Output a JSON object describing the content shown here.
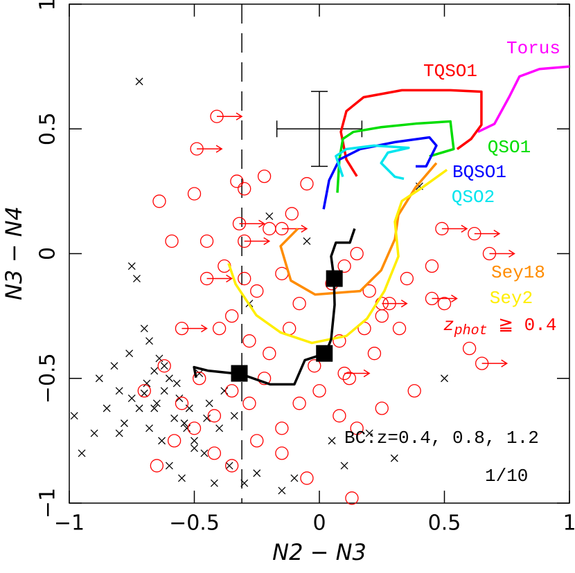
{
  "chart_data": {
    "type": "scatter",
    "xlabel": "N2 − N3",
    "ylabel": "N3 − N4",
    "xlim": [
      -1,
      1
    ],
    "ylim": [
      -1,
      1
    ],
    "xticks": [
      {
        "value": -1,
        "label": "−1"
      },
      {
        "value": -0.5,
        "label": "−0.5"
      },
      0,
      0.5,
      1
    ],
    "yticks": [
      {
        "value": -1,
        "label": "−1"
      },
      {
        "value": -0.5,
        "label": "−0.5"
      },
      0,
      0.5,
      1
    ],
    "vline": -0.31,
    "error_bar": {
      "x": 0,
      "y": 0.5,
      "xerr": 0.17,
      "yerr": 0.15
    },
    "series": [
      {
        "marker": "cross",
        "color": "#000000",
        "x": [
          -0.98,
          -0.95,
          -0.9,
          -0.88,
          -0.85,
          -0.82,
          -0.8,
          -0.78,
          -0.76,
          -0.75,
          -0.73,
          -0.72,
          -0.7,
          -0.69,
          -0.68,
          -0.66,
          -0.65,
          -0.63,
          -0.62,
          -0.6,
          -0.58,
          -0.57,
          -0.55,
          -0.53,
          -0.52,
          -0.5,
          -0.48,
          -0.46,
          -0.44,
          -0.42,
          -0.4,
          -0.38,
          -0.36,
          -0.34,
          -0.3,
          -0.28,
          -0.25,
          -0.2,
          -0.15,
          -0.1,
          -0.05,
          0.05,
          0.1,
          0.2,
          0.3,
          0.4,
          0.5,
          -0.75,
          -0.72,
          -0.68,
          -0.62,
          -0.56,
          -0.5,
          -0.45,
          -0.8,
          -0.66,
          -0.6,
          -0.54,
          -0.7,
          -0.64
        ],
        "y": [
          -0.65,
          -0.8,
          -0.72,
          -0.5,
          -0.62,
          -0.45,
          -0.55,
          -0.68,
          -0.4,
          -0.58,
          -0.1,
          -0.62,
          -0.3,
          -0.52,
          -0.7,
          -0.47,
          -0.6,
          -0.75,
          -0.55,
          -0.85,
          -0.66,
          -0.52,
          -0.9,
          -0.7,
          -0.62,
          -0.75,
          -0.48,
          -0.8,
          -0.6,
          -0.92,
          -0.7,
          -0.55,
          -0.85,
          -0.65,
          -0.92,
          -0.2,
          -0.88,
          0.15,
          -0.95,
          -0.9,
          0.05,
          -0.75,
          -0.85,
          -0.72,
          -0.82,
          0.27,
          -0.5,
          -0.05,
          0.69,
          -0.35,
          -0.45,
          -0.58,
          -0.78,
          -0.66,
          -0.72,
          -0.62,
          -0.5,
          -0.68,
          -0.56,
          -0.42
        ]
      },
      {
        "marker": "circle",
        "color": "#ff0000",
        "x": [
          -0.64,
          -0.59,
          -0.5,
          -0.33,
          -0.3,
          -0.22,
          -0.11,
          -0.45,
          -0.2,
          -0.05,
          -0.38,
          -0.3,
          -0.25,
          -0.15,
          -0.08,
          0.05,
          0.1,
          0.15,
          0.2,
          0.25,
          -0.4,
          -0.35,
          -0.28,
          -0.2,
          -0.12,
          -0.02,
          0.08,
          0.18,
          0.28,
          0.35,
          -0.7,
          -0.62,
          -0.55,
          -0.48,
          -0.42,
          -0.35,
          -0.28,
          -0.22,
          -0.15,
          -0.08,
          0.0,
          0.12,
          0.22,
          0.32,
          -0.65,
          -0.58,
          -0.5,
          -0.42,
          -0.35,
          -0.25,
          -0.15,
          -0.05,
          0.08,
          0.15,
          0.45,
          0.5,
          0.6,
          0.38,
          0.25,
          0.13
        ],
        "y": [
          0.21,
          0.05,
          0.24,
          0.29,
          0.26,
          0.31,
          0.16,
          0.05,
          0.1,
          0.28,
          -0.05,
          -0.1,
          -0.15,
          -0.08,
          -0.2,
          -0.12,
          -0.05,
          0.0,
          -0.15,
          -0.25,
          -0.3,
          -0.25,
          -0.35,
          -0.4,
          -0.3,
          -0.45,
          -0.35,
          -0.3,
          -0.2,
          -0.1,
          -0.55,
          -0.45,
          -0.6,
          -0.5,
          -0.65,
          -0.55,
          -0.6,
          -0.5,
          -0.7,
          -0.6,
          -0.55,
          -0.5,
          -0.4,
          -0.3,
          -0.85,
          -0.75,
          -0.7,
          -0.8,
          -0.85,
          -0.75,
          -0.8,
          -0.9,
          -0.65,
          -0.7,
          -0.05,
          -0.2,
          -0.38,
          -0.55,
          -0.62,
          -0.98
        ]
      },
      {
        "marker": "circle-arrow",
        "color": "#ff0000",
        "x": [
          -0.41,
          -0.49,
          -0.32,
          -0.3,
          -0.45,
          -0.15,
          0.49,
          0.62,
          0.68,
          0.25,
          0.45,
          -0.55,
          0.1,
          0.65
        ],
        "y": [
          0.55,
          0.42,
          0.12,
          0.05,
          -0.1,
          0.1,
          0.1,
          0.08,
          0.0,
          -0.2,
          -0.18,
          -0.3,
          -0.48,
          -0.44
        ]
      },
      {
        "name": "Torus",
        "marker": "line",
        "color": "#ff00ff",
        "x": [
          0.634,
          0.7,
          0.76,
          0.8,
          0.88,
          1.0
        ],
        "y": [
          0.488,
          0.52,
          0.63,
          0.71,
          0.74,
          0.75
        ]
      },
      {
        "name": "TQSO1",
        "marker": "line",
        "color": "#ff0000",
        "x": [
          0.15,
          0.108,
          0.086,
          0.108,
          0.177,
          0.33,
          0.524,
          0.648,
          0.648,
          0.607,
          0.551
        ],
        "y": [
          0.31,
          0.377,
          0.488,
          0.571,
          0.627,
          0.655,
          0.655,
          0.649,
          0.516,
          0.46,
          0.419
        ]
      },
      {
        "name": "QSO1",
        "marker": "line",
        "color": "#00dd00",
        "x": [
          0.072,
          0.08,
          0.094,
          0.136,
          0.247,
          0.385,
          0.524,
          0.537,
          0.44
        ],
        "y": [
          0.244,
          0.377,
          0.46,
          0.488,
          0.507,
          0.521,
          0.53,
          0.419,
          0.39
        ]
      },
      {
        "name": "BQSO1",
        "marker": "line",
        "color": "#0000ff",
        "x": [
          0.017,
          0.039,
          0.08,
          0.163,
          0.302,
          0.44,
          0.468,
          0.427,
          0.385
        ],
        "y": [
          0.178,
          0.294,
          0.377,
          0.419,
          0.447,
          0.466,
          0.433,
          0.35,
          0.35
        ]
      },
      {
        "name": "QSO2",
        "marker": "line",
        "color": "#00e5ee",
        "x": [
          0.094,
          0.066,
          0.108,
          0.219,
          0.357,
          0.274,
          0.247,
          0.302,
          0.338
        ],
        "y": [
          0.308,
          0.391,
          0.419,
          0.433,
          0.424,
          0.405,
          0.363,
          0.308,
          0.3
        ]
      },
      {
        "name": "Sey18",
        "marker": "line",
        "color": "#ff8c00",
        "x": [
          -0.086,
          -0.155,
          -0.114,
          -0.017,
          0.163,
          0.247,
          0.302,
          0.316,
          0.385,
          0.468
        ],
        "y": [
          0.1,
          0.03,
          -0.108,
          -0.164,
          -0.15,
          -0.067,
          0.058,
          0.155,
          0.266,
          0.363
        ]
      },
      {
        "name": "Sey2",
        "marker": "line",
        "color": "#ffee00",
        "x": [
          -0.363,
          -0.335,
          -0.252,
          -0.155,
          -0.03,
          0.108,
          0.191,
          0.26,
          0.316,
          0.302,
          0.33,
          0.413,
          0.51
        ],
        "y": [
          -0.039,
          -0.122,
          -0.247,
          -0.316,
          -0.358,
          -0.33,
          -0.26,
          -0.15,
          -0.011,
          0.128,
          0.211,
          0.266,
          0.336
        ]
      },
      {
        "marker": "line",
        "color": "#000000",
        "x": [
          -0.493,
          -0.501,
          -0.446,
          -0.313,
          -0.197,
          -0.1,
          -0.058,
          0.025,
          0.047,
          0.061,
          0.058,
          0.047,
          0.066,
          0.122,
          0.141
        ],
        "y": [
          -0.497,
          -0.455,
          -0.469,
          -0.483,
          -0.524,
          -0.524,
          -0.427,
          -0.4,
          -0.344,
          -0.205,
          -0.094,
          -0.011,
          0.044,
          0.044,
          0.1
        ]
      },
      {
        "marker": "square",
        "color": "#000000",
        "x": [
          -0.32,
          0.02,
          0.06
        ],
        "y": [
          -0.48,
          -0.4,
          -0.1
        ]
      }
    ],
    "zphot_label": {
      "main": "z",
      "sub": "phot",
      "rest": " ≧ 0.4"
    },
    "bc_label": "BC:z=0.4, 0.8, 1.2",
    "scale_label": "1/10"
  }
}
